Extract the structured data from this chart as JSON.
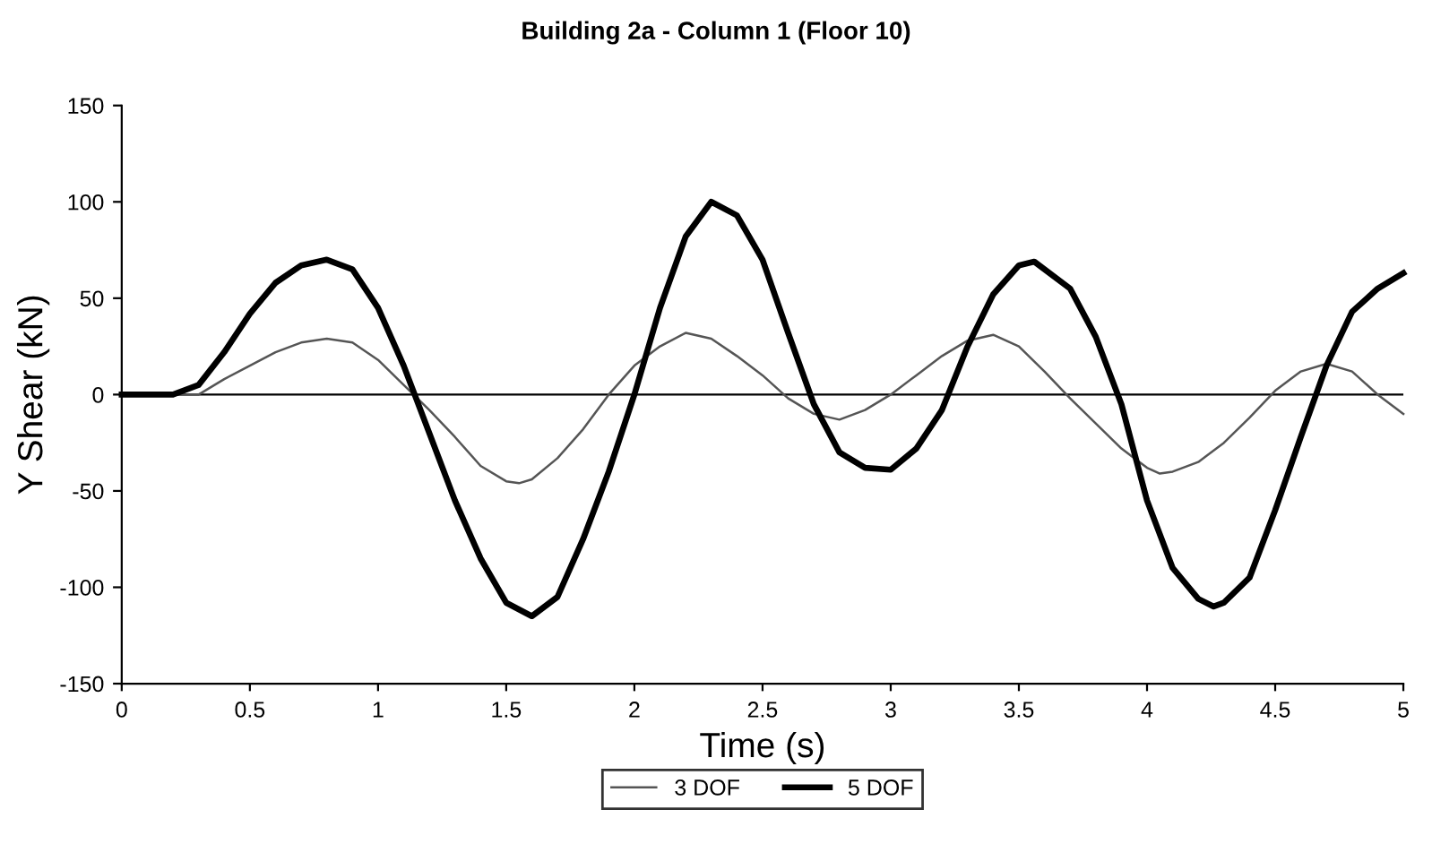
{
  "chart_data": {
    "type": "line",
    "title": "Building 2a - Column 1 (Floor 10)",
    "xlabel": "Time (s)",
    "ylabel": "Y Shear (kN)",
    "xlim": [
      0,
      5
    ],
    "xticks": [
      0,
      0.5,
      1,
      1.5,
      2,
      2.5,
      3,
      3.5,
      4,
      4.5,
      5
    ],
    "ylim": [
      -150,
      150
    ],
    "yticks": [
      -150,
      -100,
      -50,
      0,
      50,
      100,
      150
    ],
    "grid": false,
    "legend": "bottom",
    "marker": "none",
    "ref_lines": [
      {
        "axis": "y",
        "value": 0,
        "color": "#000000"
      }
    ],
    "series": [
      {
        "name": "3 DOF",
        "color": "#555555",
        "line_style": "solid",
        "x": [
          0,
          0.3,
          0.4,
          0.5,
          0.6,
          0.7,
          0.8,
          0.9,
          1.0,
          1.1,
          1.2,
          1.3,
          1.4,
          1.5,
          1.55,
          1.6,
          1.7,
          1.8,
          1.9,
          2.0,
          2.1,
          2.2,
          2.3,
          2.4,
          2.5,
          2.6,
          2.7,
          2.8,
          2.9,
          3.0,
          3.1,
          3.2,
          3.3,
          3.4,
          3.5,
          3.6,
          3.7,
          3.8,
          3.9,
          4.0,
          4.05,
          4.1,
          4.2,
          4.3,
          4.4,
          4.5,
          4.6,
          4.7,
          4.8,
          4.9,
          5.0
        ],
        "values": [
          0,
          0,
          8,
          15,
          22,
          27,
          29,
          27,
          18,
          5,
          -8,
          -22,
          -37,
          -45,
          -46,
          -44,
          -33,
          -18,
          0,
          15,
          25,
          32,
          29,
          20,
          10,
          -2,
          -10,
          -13,
          -8,
          0,
          10,
          20,
          28,
          31,
          25,
          12,
          -2,
          -15,
          -28,
          -38,
          -41,
          -40,
          -35,
          -25,
          -12,
          2,
          12,
          16,
          12,
          0,
          -10
        ]
      },
      {
        "name": "5 DOF",
        "color": "#000000",
        "line_style": "solid",
        "x": [
          0,
          0.2,
          0.3,
          0.4,
          0.5,
          0.6,
          0.7,
          0.8,
          0.9,
          1.0,
          1.1,
          1.2,
          1.3,
          1.4,
          1.5,
          1.6,
          1.7,
          1.8,
          1.9,
          2.0,
          2.1,
          2.2,
          2.3,
          2.4,
          2.5,
          2.6,
          2.7,
          2.8,
          2.9,
          3.0,
          3.1,
          3.2,
          3.3,
          3.4,
          3.5,
          3.56,
          3.7,
          3.8,
          3.9,
          4.0,
          4.1,
          4.2,
          4.26,
          4.3,
          4.4,
          4.5,
          4.6,
          4.7,
          4.8,
          4.9,
          5.0
        ],
        "values": [
          0,
          0,
          5,
          22,
          42,
          58,
          67,
          70,
          65,
          45,
          15,
          -20,
          -55,
          -85,
          -108,
          -115,
          -105,
          -75,
          -40,
          0,
          45,
          82,
          100,
          93,
          70,
          32,
          -5,
          -30,
          -38,
          -39,
          -28,
          -8,
          25,
          52,
          67,
          69,
          55,
          30,
          -5,
          -55,
          -90,
          -106,
          -110,
          -108,
          -95,
          -60,
          -22,
          15,
          43,
          55,
          63
        ]
      }
    ]
  }
}
